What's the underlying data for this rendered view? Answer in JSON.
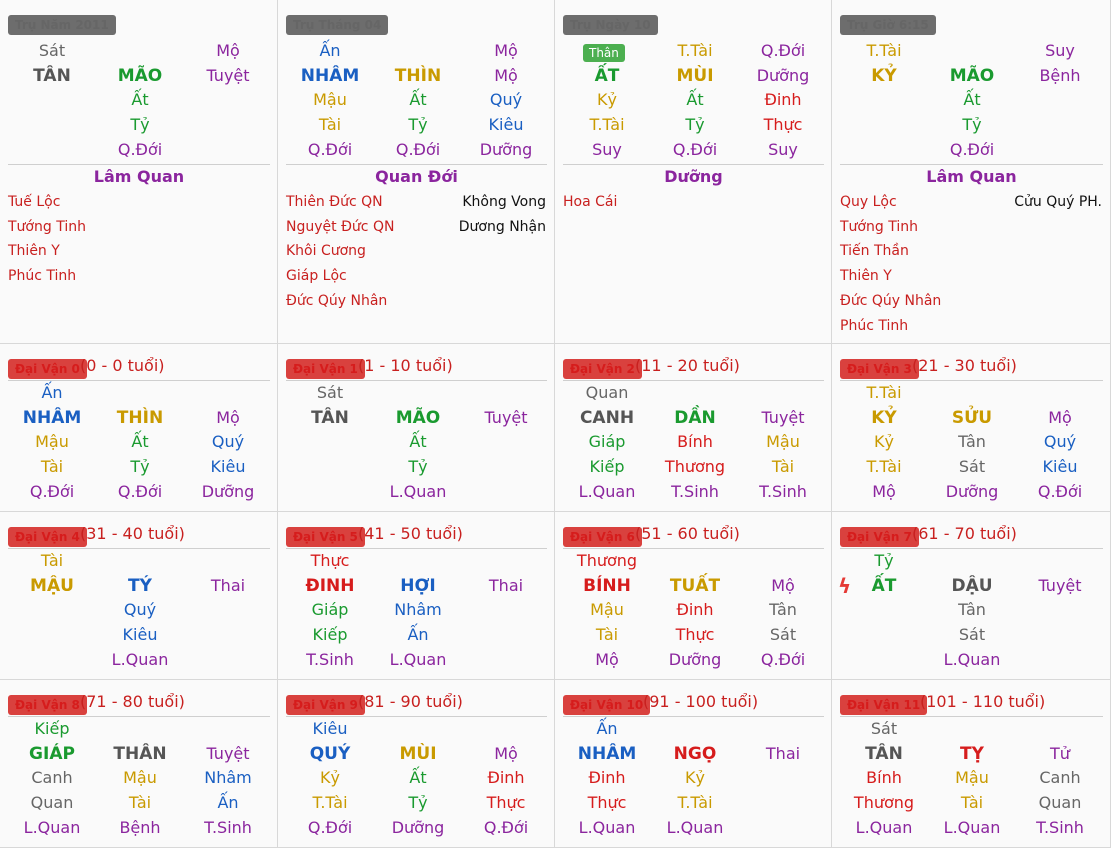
{
  "pillars": [
    {
      "label": "Trụ Năm 2011",
      "rows": [
        [
          "Sát",
          "gray",
          ""
        ],
        [
          "TÂN",
          "gray",
          "b"
        ],
        [
          "MÃO",
          "green",
          "b"
        ],
        [
          "Mộ",
          "purple",
          ""
        ],
        [
          "Tuyệt",
          "purple",
          ""
        ],
        [
          "Ất",
          "green",
          ""
        ],
        [
          "Tỷ",
          "green",
          ""
        ],
        [
          "Q.Đới",
          "purple",
          ""
        ]
      ],
      "grid": [
        [
          "Sát",
          "gray",
          false,
          null,
          null,
          false,
          "Mộ",
          "purple",
          false
        ],
        [
          "TÂN",
          "dark",
          true,
          "MÃO",
          "green",
          true,
          "Tuyệt",
          "purple",
          false
        ],
        [
          null,
          null,
          false,
          "Ất",
          "green",
          false,
          null,
          null,
          false
        ],
        [
          null,
          null,
          false,
          "Tỷ",
          "green",
          false,
          null,
          null,
          false
        ],
        [
          null,
          null,
          false,
          "Q.Đới",
          "purple",
          false,
          null,
          null,
          false
        ]
      ],
      "title": "Lâm Quan",
      "stars_left": [
        "Tuế Lộc",
        "Tướng Tinh",
        "Thiên Y",
        "Phúc Tinh"
      ],
      "stars_right": []
    },
    {
      "label": "Trụ Tháng 04",
      "grid": [
        [
          "Ấn",
          "blue",
          false,
          null,
          null,
          false,
          "Mộ",
          "purple",
          false
        ],
        [
          "NHÂM",
          "blue",
          true,
          "THÌN",
          "gold",
          true,
          "Mộ",
          "purple",
          false
        ],
        [
          "Mậu",
          "gold",
          false,
          "Ất",
          "green",
          false,
          "Quý",
          "blue",
          false
        ],
        [
          "Tài",
          "gold",
          false,
          "Tỷ",
          "green",
          false,
          "Kiêu",
          "blue",
          false
        ],
        [
          "Q.Đới",
          "purple",
          false,
          "Q.Đới",
          "purple",
          false,
          "Dưỡng",
          "purple",
          false
        ]
      ],
      "title": "Quan Đới",
      "stars_left": [
        "Thiên Đức QN",
        "Nguyệt Đức QN",
        "Khôi Cương",
        "Giáp Lộc",
        "Đức Qúy Nhân"
      ],
      "stars_right": [
        "Không Vong",
        "Dương Nhận"
      ]
    },
    {
      "label": "Trụ Ngày 10",
      "tag": "Thân",
      "grid": [
        [
          null,
          null,
          false,
          "T.Tài",
          "gold",
          false,
          "Q.Đới",
          "purple",
          false
        ],
        [
          "ẤT",
          "green",
          true,
          "MÙI",
          "gold",
          true,
          "Dưỡng",
          "purple",
          false
        ],
        [
          "Kỷ",
          "gold",
          false,
          "Ất",
          "green",
          false,
          "Đinh",
          "red",
          false
        ],
        [
          "T.Tài",
          "gold",
          false,
          "Tỷ",
          "green",
          false,
          "Thực",
          "red",
          false
        ],
        [
          "Suy",
          "purple",
          false,
          "Q.Đới",
          "purple",
          false,
          "Suy",
          "purple",
          false
        ]
      ],
      "title": "Dưỡng",
      "stars_left": [
        "Hoa Cái"
      ],
      "stars_right": []
    },
    {
      "label": "Trụ Giờ 6:15",
      "grid": [
        [
          "T.Tài",
          "gold",
          false,
          null,
          null,
          false,
          "Suy",
          "purple",
          false
        ],
        [
          "KỶ",
          "gold",
          true,
          "MÃO",
          "green",
          true,
          "Bệnh",
          "purple",
          false
        ],
        [
          null,
          null,
          false,
          "Ất",
          "green",
          false,
          null,
          null,
          false
        ],
        [
          null,
          null,
          false,
          "Tỷ",
          "green",
          false,
          null,
          null,
          false
        ],
        [
          null,
          null,
          false,
          "Q.Đới",
          "purple",
          false,
          null,
          null,
          false
        ]
      ],
      "title": "Lâm Quan",
      "stars_left": [
        "Quy Lộc",
        "Tướng Tinh",
        "Tiến Thần",
        "Thiên Y",
        "Đức Qúy Nhân",
        "Phúc Tinh"
      ],
      "stars_right": [
        "Cửu Quý PH."
      ]
    }
  ],
  "luck": [
    {
      "label": "Đại Vận 0",
      "age": "(0 - 0 tuổi)",
      "grid": [
        [
          "Ấn",
          "blue",
          false,
          null,
          null,
          false,
          null,
          null,
          false
        ],
        [
          "NHÂM",
          "blue",
          true,
          "THÌN",
          "gold",
          true,
          "Mộ",
          "purple",
          false
        ],
        [
          "Mậu",
          "gold",
          false,
          "Ất",
          "green",
          false,
          "Quý",
          "blue",
          false
        ],
        [
          "Tài",
          "gold",
          false,
          "Tỷ",
          "green",
          false,
          "Kiêu",
          "blue",
          false
        ],
        [
          "Q.Đới",
          "purple",
          false,
          "Q.Đới",
          "purple",
          false,
          "Dưỡng",
          "purple",
          false
        ]
      ]
    },
    {
      "label": "Đại Vận 1",
      "age": "(1 - 10 tuổi)",
      "grid": [
        [
          "Sát",
          "gray",
          false,
          null,
          null,
          false,
          null,
          null,
          false
        ],
        [
          "TÂN",
          "dark",
          true,
          "MÃO",
          "green",
          true,
          "Tuyệt",
          "purple",
          false
        ],
        [
          null,
          null,
          false,
          "Ất",
          "green",
          false,
          null,
          null,
          false
        ],
        [
          null,
          null,
          false,
          "Tỷ",
          "green",
          false,
          null,
          null,
          false
        ],
        [
          null,
          null,
          false,
          "L.Quan",
          "purple",
          false,
          null,
          null,
          false
        ]
      ]
    },
    {
      "label": "Đại Vận 2",
      "age": "(11 - 20 tuổi)",
      "grid": [
        [
          "Quan",
          "gray",
          false,
          null,
          null,
          false,
          null,
          null,
          false
        ],
        [
          "CANH",
          "dark",
          true,
          "DẦN",
          "green",
          true,
          "Tuyệt",
          "purple",
          false
        ],
        [
          "Giáp",
          "green",
          false,
          "Bính",
          "red",
          false,
          "Mậu",
          "gold",
          false
        ],
        [
          "Kiếp",
          "green",
          false,
          "Thương",
          "red",
          false,
          "Tài",
          "gold",
          false
        ],
        [
          "L.Quan",
          "purple",
          false,
          "T.Sinh",
          "purple",
          false,
          "T.Sinh",
          "purple",
          false
        ]
      ]
    },
    {
      "label": "Đại Vận 3",
      "age": "(21 - 30 tuổi)",
      "grid": [
        [
          "T.Tài",
          "gold",
          false,
          null,
          null,
          false,
          null,
          null,
          false
        ],
        [
          "KỶ",
          "gold",
          true,
          "SỬU",
          "gold",
          true,
          "Mộ",
          "purple",
          false
        ],
        [
          "Kỷ",
          "gold",
          false,
          "Tân",
          "gray",
          false,
          "Quý",
          "blue",
          false
        ],
        [
          "T.Tài",
          "gold",
          false,
          "Sát",
          "gray",
          false,
          "Kiêu",
          "blue",
          false
        ],
        [
          "Mộ",
          "purple",
          false,
          "Dưỡng",
          "purple",
          false,
          "Q.Đới",
          "purple",
          false
        ]
      ]
    },
    {
      "label": "Đại Vận 4",
      "age": "(31 - 40 tuổi)",
      "grid": [
        [
          "Tài",
          "gold",
          false,
          null,
          null,
          false,
          null,
          null,
          false
        ],
        [
          "MẬU",
          "gold",
          true,
          "TÝ",
          "blue",
          true,
          "Thai",
          "purple",
          false
        ],
        [
          null,
          null,
          false,
          "Quý",
          "blue",
          false,
          null,
          null,
          false
        ],
        [
          null,
          null,
          false,
          "Kiêu",
          "blue",
          false,
          null,
          null,
          false
        ],
        [
          null,
          null,
          false,
          "L.Quan",
          "purple",
          false,
          null,
          null,
          false
        ]
      ]
    },
    {
      "label": "Đại Vận 5",
      "age": "(41 - 50 tuổi)",
      "grid": [
        [
          "Thực",
          "red",
          false,
          null,
          null,
          false,
          null,
          null,
          false
        ],
        [
          "ĐINH",
          "red",
          true,
          "HỢI",
          "blue",
          true,
          "Thai",
          "purple",
          false
        ],
        [
          "Giáp",
          "green",
          false,
          "Nhâm",
          "blue",
          false,
          null,
          null,
          false
        ],
        [
          "Kiếp",
          "green",
          false,
          "Ấn",
          "blue",
          false,
          null,
          null,
          false
        ],
        [
          "T.Sinh",
          "purple",
          false,
          "L.Quan",
          "purple",
          false,
          null,
          null,
          false
        ]
      ]
    },
    {
      "label": "Đại Vận 6",
      "age": "(51 - 60 tuổi)",
      "grid": [
        [
          "Thương",
          "red",
          false,
          null,
          null,
          false,
          null,
          null,
          false
        ],
        [
          "BÍNH",
          "red",
          true,
          "TUẤT",
          "gold",
          true,
          "Mộ",
          "purple",
          false
        ],
        [
          "Mậu",
          "gold",
          false,
          "Đinh",
          "red",
          false,
          "Tân",
          "gray",
          false
        ],
        [
          "Tài",
          "gold",
          false,
          "Thực",
          "red",
          false,
          "Sát",
          "gray",
          false
        ],
        [
          "Mộ",
          "purple",
          false,
          "Dưỡng",
          "purple",
          false,
          "Q.Đới",
          "purple",
          false
        ]
      ]
    },
    {
      "label": "Đại Vận 7",
      "age": "(61 - 70 tuổi)",
      "bolt": true,
      "grid": [
        [
          "Tỷ",
          "green",
          false,
          null,
          null,
          false,
          null,
          null,
          false
        ],
        [
          "ẤT",
          "green",
          true,
          "DẬU",
          "dark",
          true,
          "Tuyệt",
          "purple",
          false
        ],
        [
          null,
          null,
          false,
          "Tân",
          "gray",
          false,
          null,
          null,
          false
        ],
        [
          null,
          null,
          false,
          "Sát",
          "gray",
          false,
          null,
          null,
          false
        ],
        [
          null,
          null,
          false,
          "L.Quan",
          "purple",
          false,
          null,
          null,
          false
        ]
      ]
    },
    {
      "label": "Đại Vận 8",
      "age": "(71 - 80 tuổi)",
      "grid": [
        [
          "Kiếp",
          "green",
          false,
          null,
          null,
          false,
          null,
          null,
          false
        ],
        [
          "GIÁP",
          "green",
          true,
          "THÂN",
          "dark",
          true,
          "Tuyệt",
          "purple",
          false
        ],
        [
          "Canh",
          "gray",
          false,
          "Mậu",
          "gold",
          false,
          "Nhâm",
          "blue",
          false
        ],
        [
          "Quan",
          "gray",
          false,
          "Tài",
          "gold",
          false,
          "Ấn",
          "blue",
          false
        ],
        [
          "L.Quan",
          "purple",
          false,
          "Bệnh",
          "purple",
          false,
          "T.Sinh",
          "purple",
          false
        ]
      ]
    },
    {
      "label": "Đại Vận 9",
      "age": "(81 - 90 tuổi)",
      "grid": [
        [
          "Kiêu",
          "blue",
          false,
          null,
          null,
          false,
          null,
          null,
          false
        ],
        [
          "QUÝ",
          "blue",
          true,
          "MÙI",
          "gold",
          true,
          "Mộ",
          "purple",
          false
        ],
        [
          "Kỷ",
          "gold",
          false,
          "Ất",
          "green",
          false,
          "Đinh",
          "red",
          false
        ],
        [
          "T.Tài",
          "gold",
          false,
          "Tỷ",
          "green",
          false,
          "Thực",
          "red",
          false
        ],
        [
          "Q.Đới",
          "purple",
          false,
          "Dưỡng",
          "purple",
          false,
          "Q.Đới",
          "purple",
          false
        ]
      ]
    },
    {
      "label": "Đại Vận 10",
      "age": "(91 - 100 tuổi)",
      "grid": [
        [
          "Ấn",
          "blue",
          false,
          null,
          null,
          false,
          null,
          null,
          false
        ],
        [
          "NHÂM",
          "blue",
          true,
          "NGỌ",
          "red",
          true,
          "Thai",
          "purple",
          false
        ],
        [
          "Đinh",
          "red",
          false,
          "Kỷ",
          "gold",
          false,
          null,
          null,
          false
        ],
        [
          "Thực",
          "red",
          false,
          "T.Tài",
          "gold",
          false,
          null,
          null,
          false
        ],
        [
          "L.Quan",
          "purple",
          false,
          "L.Quan",
          "purple",
          false,
          null,
          null,
          false
        ]
      ]
    },
    {
      "label": "Đại Vận 11",
      "age": "(101 - 110 tuổi)",
      "grid": [
        [
          "Sát",
          "gray",
          false,
          null,
          null,
          false,
          null,
          null,
          false
        ],
        [
          "TÂN",
          "dark",
          true,
          "TỴ",
          "red",
          true,
          "Tử",
          "purple",
          false
        ],
        [
          "Bính",
          "red",
          false,
          "Mậu",
          "gold",
          false,
          "Canh",
          "gray",
          false
        ],
        [
          "Thương",
          "red",
          false,
          "Tài",
          "gold",
          false,
          "Quan",
          "gray",
          false
        ],
        [
          "L.Quan",
          "purple",
          false,
          "L.Quan",
          "purple",
          false,
          "T.Sinh",
          "purple",
          false
        ]
      ]
    }
  ]
}
